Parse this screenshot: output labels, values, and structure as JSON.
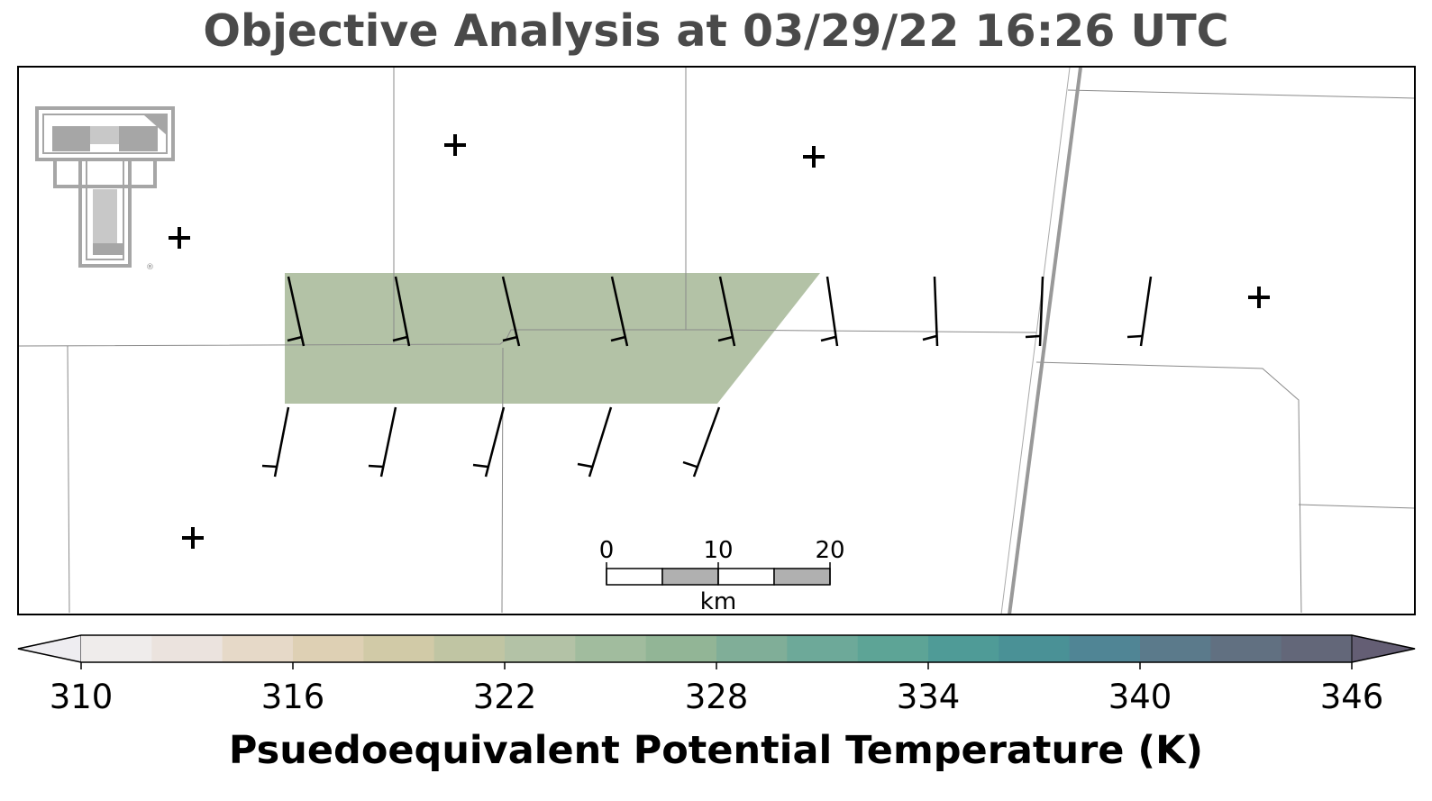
{
  "title": "Objective Analysis at 03/29/22 16:26 UTC",
  "logo": {
    "lettering": "TT",
    "registered": "®",
    "color": "#a6a6a6"
  },
  "scale_bar": {
    "unit": "km",
    "ticks": [
      "0",
      "10",
      "20"
    ]
  },
  "shaded_region": {
    "value_K": 322,
    "color": "#b3c2a6"
  },
  "colorbar": {
    "label": "Psuedoequivalent Potential Temperature (K)",
    "ticks": [
      "310",
      "316",
      "322",
      "328",
      "334",
      "340",
      "346"
    ],
    "colors": [
      "#eeedf1",
      "#efeceb",
      "#ebe3de",
      "#e6d9c8",
      "#ded0b4",
      "#d1caa7",
      "#c0c5a3",
      "#b3c2a6",
      "#a1bc9e",
      "#92b596",
      "#80ae98",
      "#6da999",
      "#5da496",
      "#4f9b97",
      "#4a9196",
      "#508595",
      "#5b7a8b",
      "#617081",
      "#636779",
      "#645e74"
    ],
    "extend": "both"
  },
  "station_markers": [
    "+",
    "+",
    "+",
    "+",
    "+"
  ],
  "wind_barbs": {
    "upper_row_count": 9,
    "lower_row_count": 5
  }
}
